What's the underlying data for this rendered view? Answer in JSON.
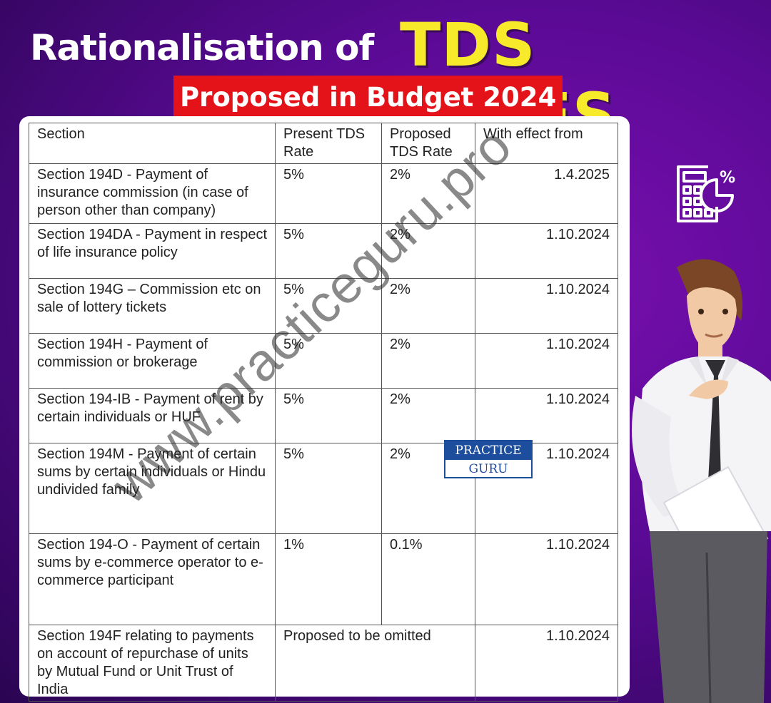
{
  "header": {
    "title_prefix": "Rationalisation of",
    "title_main": "TDS RATES",
    "subtitle": "Proposed in Budget 2024"
  },
  "table": {
    "columns": [
      "Section",
      "Present TDS Rate",
      "Proposed TDS Rate",
      "With effect from"
    ],
    "rows": [
      {
        "section": "Section 194D - Payment of insurance commission (in case of person other than company)",
        "present": "5%",
        "proposed": "2%",
        "effective": "1.4.2025"
      },
      {
        "section": "Section 194DA - Payment in respect of life insurance policy",
        "present": "5%",
        "proposed": "2%",
        "effective": "1.10.2024"
      },
      {
        "section": "Section 194G – Commission etc on sale of lottery tickets",
        "present": "5%",
        "proposed": "2%",
        "effective": "1.10.2024"
      },
      {
        "section": "Section 194H - Payment of commission or brokerage",
        "present": "5%",
        "proposed": "2%",
        "effective": "1.10.2024"
      },
      {
        "section": "Section 194-IB - Payment of rent by certain individuals or HUF",
        "present": "5%",
        "proposed": "2%",
        "effective": "1.10.2024"
      },
      {
        "section": "Section 194M - Payment of certain sums by certain individuals or Hindu undivided family",
        "present": "5%",
        "proposed": "2%",
        "effective": "1.10.2024"
      },
      {
        "section": "Section 194-O - Payment of certain sums by e-commerce operator to e-commerce participant",
        "present": "1%",
        "proposed": "0.1%",
        "effective": "1.10.2024"
      },
      {
        "section": "Section 194F relating to payments on account of repurchase of units by Mutual Fund or Unit Trust of India",
        "merged": "Proposed to be omitted",
        "effective": "1.10.2024"
      }
    ]
  },
  "watermark": "www.practiceguru.pro",
  "logo": {
    "top": "PRACTICE",
    "bottom": "GURU"
  },
  "icons": {
    "calculator": "calculator-percent-icon",
    "person": "thinking-businessman-illustration"
  },
  "colors": {
    "title_yellow": "#f7ea2b",
    "banner_red": "#e41319",
    "logo_blue": "#1d4e9e"
  }
}
